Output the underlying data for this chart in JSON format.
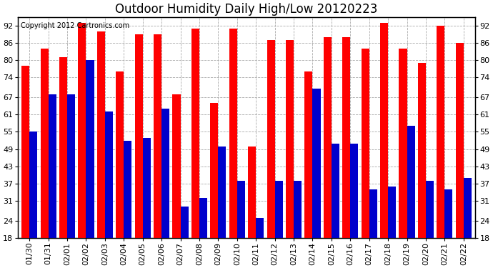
{
  "title": "Outdoor Humidity Daily High/Low 20120223",
  "copyright": "Copyright 2012 Cartronics.com",
  "dates": [
    "01/30",
    "01/31",
    "02/01",
    "02/02",
    "02/03",
    "02/04",
    "02/05",
    "02/06",
    "02/07",
    "02/08",
    "02/09",
    "02/10",
    "02/11",
    "02/12",
    "02/13",
    "02/14",
    "02/15",
    "02/16",
    "02/17",
    "02/18",
    "02/19",
    "02/20",
    "02/21",
    "02/22"
  ],
  "highs": [
    78,
    84,
    81,
    93,
    90,
    76,
    89,
    89,
    68,
    91,
    65,
    91,
    50,
    87,
    87,
    76,
    88,
    88,
    84,
    93,
    84,
    79,
    92,
    86
  ],
  "lows": [
    55,
    68,
    68,
    80,
    62,
    52,
    53,
    63,
    29,
    32,
    50,
    38,
    25,
    38,
    38,
    70,
    51,
    51,
    35,
    36,
    57,
    38,
    35,
    39
  ],
  "ylim_min": 18,
  "ylim_max": 95,
  "yticks": [
    18,
    24,
    31,
    37,
    43,
    49,
    55,
    61,
    67,
    74,
    80,
    86,
    92
  ],
  "bar_color_high": "#FF0000",
  "bar_color_low": "#0000CC",
  "background_color": "#FFFFFF",
  "grid_color": "#AAAAAA",
  "title_fontsize": 12,
  "tick_fontsize": 8,
  "copyright_fontsize": 7,
  "bar_width": 0.42
}
